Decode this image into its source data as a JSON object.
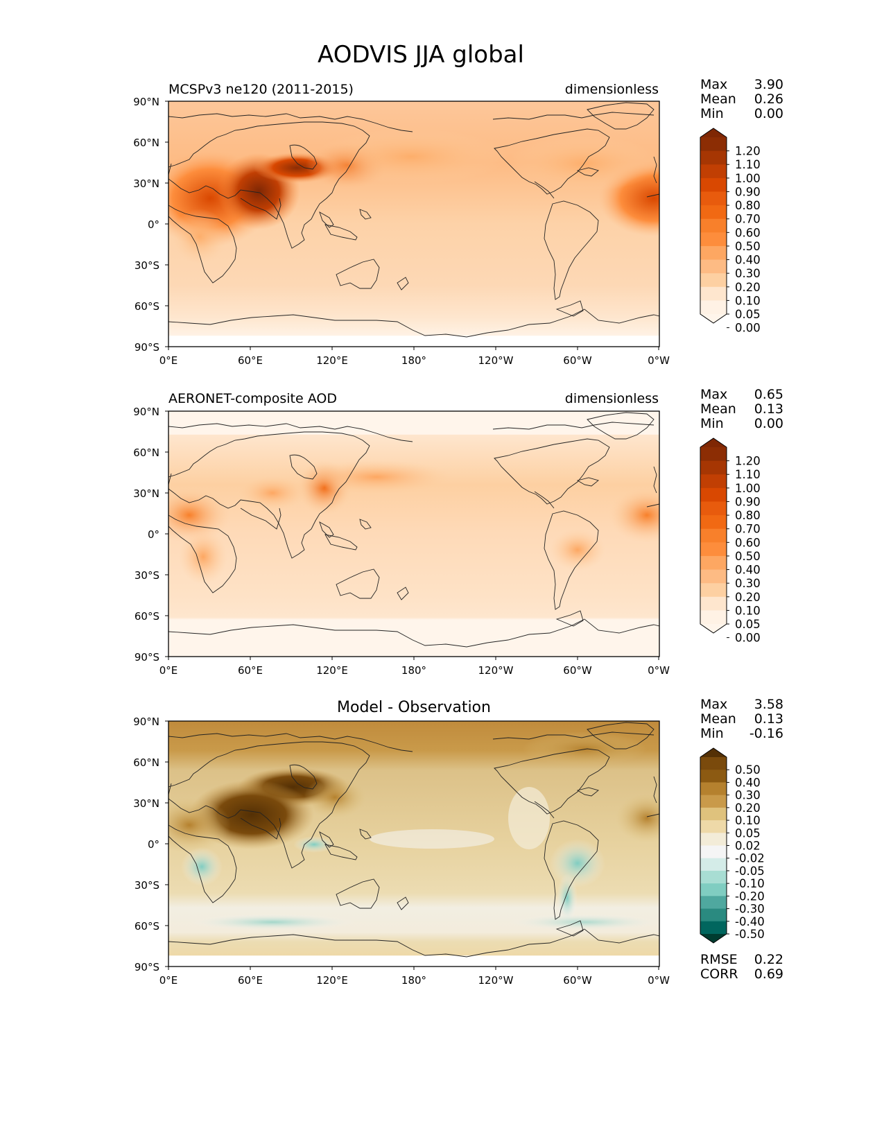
{
  "figure": {
    "title": "AODVIS JJA global"
  },
  "axes": {
    "lat_labels": [
      "90°N",
      "60°N",
      "30°N",
      "0°",
      "30°S",
      "60°S",
      "90°S"
    ],
    "lon_labels": [
      "0°E",
      "60°E",
      "120°E",
      "180°",
      "120°W",
      "60°W",
      "0°W"
    ]
  },
  "panels": [
    {
      "id": "model",
      "left_title": "MCSPv3 ne120 (2011-2015)",
      "center_title": "",
      "right_title": "dimensionless",
      "stats": [
        {
          "label": "Max",
          "value": "3.90"
        },
        {
          "label": "Mean",
          "value": "0.26"
        },
        {
          "label": "Min",
          "value": "0.00"
        }
      ],
      "colorbar": {
        "labels": [
          "1.20",
          "1.10",
          "1.00",
          "0.90",
          "0.80",
          "0.70",
          "0.60",
          "0.50",
          "0.40",
          "0.30",
          "0.20",
          "0.10",
          "0.05",
          "0.00"
        ],
        "colors": [
          "#7f2704",
          "#8c2d04",
          "#a63603",
          "#c13f03",
          "#d94801",
          "#e85b0d",
          "#f16913",
          "#f8802b",
          "#fd8d3c",
          "#fda762",
          "#fdbb84",
          "#fdd0a2",
          "#fee6ce",
          "#fff2e5",
          "#fff5eb"
        ]
      },
      "bottom_stats": []
    },
    {
      "id": "obs",
      "left_title": "AERONET-composite AOD",
      "center_title": "",
      "right_title": "dimensionless",
      "stats": [
        {
          "label": "Max",
          "value": "0.65"
        },
        {
          "label": "Mean",
          "value": "0.13"
        },
        {
          "label": "Min",
          "value": "0.00"
        }
      ],
      "colorbar": {
        "labels": [
          "1.20",
          "1.10",
          "1.00",
          "0.90",
          "0.80",
          "0.70",
          "0.60",
          "0.50",
          "0.40",
          "0.30",
          "0.20",
          "0.10",
          "0.05",
          "0.00"
        ],
        "colors": [
          "#7f2704",
          "#8c2d04",
          "#a63603",
          "#c13f03",
          "#d94801",
          "#e85b0d",
          "#f16913",
          "#f8802b",
          "#fd8d3c",
          "#fda762",
          "#fdbb84",
          "#fdd0a2",
          "#fee6ce",
          "#fff2e5",
          "#fff5eb"
        ]
      },
      "bottom_stats": []
    },
    {
      "id": "diff",
      "left_title": "",
      "center_title": "Model - Observation",
      "right_title": "",
      "stats": [
        {
          "label": "Max",
          "value": "3.58"
        },
        {
          "label": "Mean",
          "value": "0.13"
        },
        {
          "label": "Min",
          "value": "-0.16"
        }
      ],
      "colorbar": {
        "labels": [
          "0.50",
          "0.40",
          "0.30",
          "0.20",
          "0.10",
          "0.05",
          "0.02",
          "-0.02",
          "-0.05",
          "-0.10",
          "-0.20",
          "-0.30",
          "-0.40",
          "-0.50"
        ],
        "colors": [
          "#543005",
          "#7a4a0c",
          "#8c5a12",
          "#b5812e",
          "#c99a4a",
          "#dfc27d",
          "#eed9a8",
          "#f3ecd8",
          "#f5f5f5",
          "#d4ece8",
          "#a8ddd3",
          "#80cdc1",
          "#4fa89f",
          "#2a8a80",
          "#01665e",
          "#003c30"
        ]
      },
      "bottom_stats": [
        {
          "label": "RMSE",
          "value": "0.22"
        },
        {
          "label": "CORR",
          "value": "0.69"
        }
      ]
    }
  ]
}
